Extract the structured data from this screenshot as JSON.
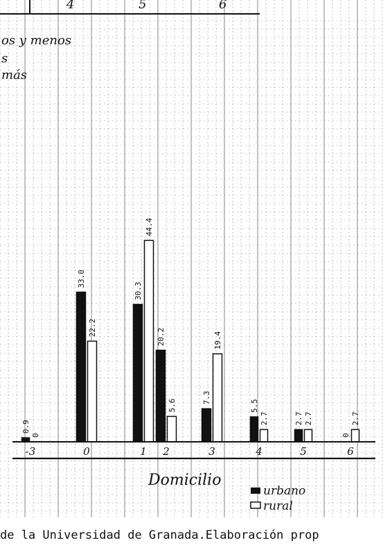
{
  "header": {
    "col_numbers": [
      "4",
      "5",
      "6"
    ],
    "note_lines": [
      "os y menos",
      "s",
      "más"
    ]
  },
  "chart_data": {
    "type": "bar",
    "categories": [
      "-3",
      "0",
      "1",
      "2",
      "3",
      "4",
      "5",
      "6"
    ],
    "series": [
      {
        "name": "urbano",
        "values": [
          0.9,
          33.0,
          30.3,
          20.2,
          7.3,
          5.5,
          2.7,
          0
        ]
      },
      {
        "name": "rural",
        "values": [
          0,
          22.2,
          44.4,
          5.6,
          19.4,
          2.7,
          2.7,
          2.7
        ]
      }
    ],
    "value_labels": {
      "urbano": [
        "0.9",
        "33.0",
        "30.3",
        "20.2",
        "7.3",
        "5.5",
        "2.7",
        "0"
      ],
      "rural": [
        "0",
        "22.2",
        "44.4",
        "5.6",
        "19.4",
        "2.7",
        "2.7",
        "2.7"
      ]
    },
    "xlabel": "Domicilio",
    "ylim": [
      0,
      50
    ],
    "grid": true,
    "legend_position": "bottom-right",
    "colors": {
      "urbano": "#111111",
      "rural": "#ffffff",
      "grid": "#9a9a9a"
    }
  },
  "footer": {
    "source_text": "de la Universidad de Granada.Elaboración prop"
  }
}
